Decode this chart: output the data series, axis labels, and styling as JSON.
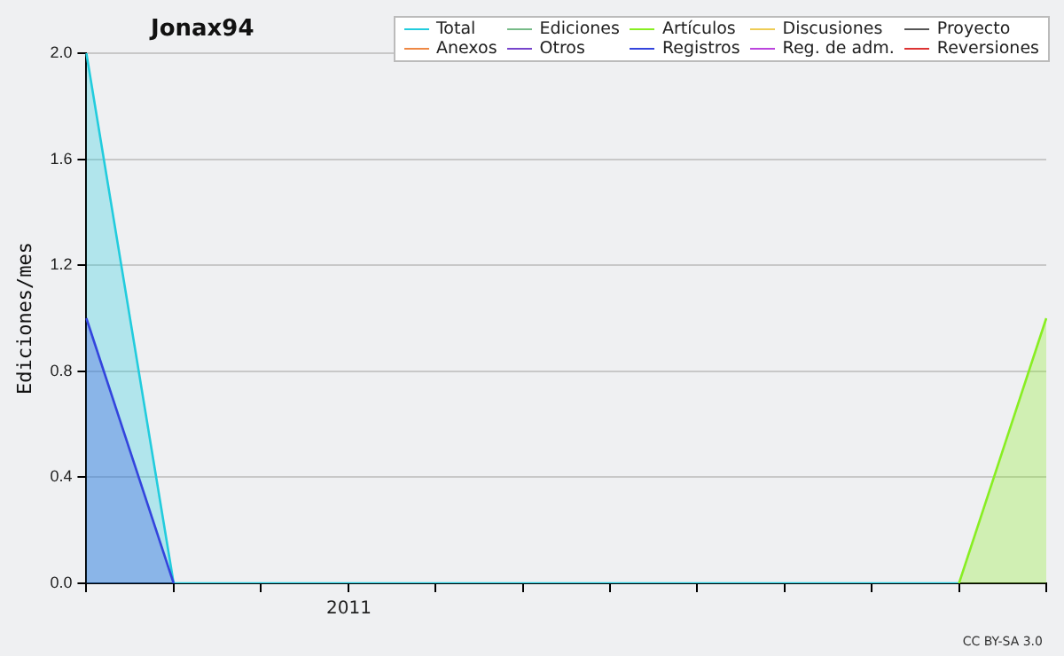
{
  "chart_data": {
    "type": "area",
    "title": "Jonax94",
    "ylabel": "Ediciones/mes",
    "categories": [
      null,
      null,
      null,
      null,
      null,
      null,
      null,
      null,
      null,
      null,
      null,
      null
    ],
    "series": [
      {
        "name": "Total",
        "color": "#22ccdd",
        "values": [
          2,
          0,
          0,
          0,
          0,
          0,
          0,
          0,
          0,
          0,
          0,
          null
        ]
      },
      {
        "name": "Ediciones",
        "color": "#77bb88",
        "values": [
          null,
          null,
          null,
          null,
          null,
          null,
          null,
          null,
          null,
          null,
          null,
          null
        ]
      },
      {
        "name": "Artículos",
        "color": "#88ee22",
        "values": [
          null,
          null,
          null,
          null,
          null,
          null,
          null,
          null,
          null,
          null,
          0,
          1
        ]
      },
      {
        "name": "Discusiones",
        "color": "#eecc55",
        "values": [
          null,
          null,
          null,
          null,
          null,
          null,
          null,
          null,
          null,
          null,
          null,
          null
        ]
      },
      {
        "name": "Proyecto",
        "color": "#555555",
        "values": [
          null,
          null,
          null,
          null,
          null,
          null,
          null,
          null,
          null,
          null,
          null,
          null
        ]
      },
      {
        "name": "Anexos",
        "color": "#ee8844",
        "values": [
          null,
          null,
          null,
          null,
          null,
          null,
          null,
          null,
          null,
          null,
          null,
          null
        ]
      },
      {
        "name": "Otros",
        "color": "#7744cc",
        "values": [
          null,
          null,
          null,
          null,
          null,
          null,
          null,
          null,
          null,
          null,
          null,
          null
        ]
      },
      {
        "name": "Registros",
        "color": "#3344dd",
        "values": [
          1,
          0,
          null,
          null,
          null,
          null,
          null,
          null,
          null,
          null,
          null,
          null
        ]
      },
      {
        "name": "Reg. de adm.",
        "color": "#bb44dd",
        "values": [
          null,
          null,
          null,
          null,
          null,
          null,
          null,
          null,
          null,
          null,
          null,
          null
        ]
      },
      {
        "name": "Reversiones",
        "color": "#dd3333",
        "values": [
          null,
          null,
          null,
          null,
          null,
          null,
          null,
          null,
          null,
          null,
          null,
          null
        ]
      }
    ],
    "ylim": [
      0,
      2
    ],
    "yticks": [
      {
        "value": 0,
        "label": "0.0"
      },
      {
        "value": 0.4,
        "label": "0.4"
      },
      {
        "value": 0.8,
        "label": "0.8"
      },
      {
        "value": 1.2,
        "label": "1.2"
      },
      {
        "value": 1.6,
        "label": "1.6"
      },
      {
        "value": 2,
        "label": "2.0"
      }
    ],
    "grid": "y",
    "legend": "top right",
    "marker": "none",
    "annotations": [
      "2011",
      "CC BY-SA 3.0"
    ]
  }
}
